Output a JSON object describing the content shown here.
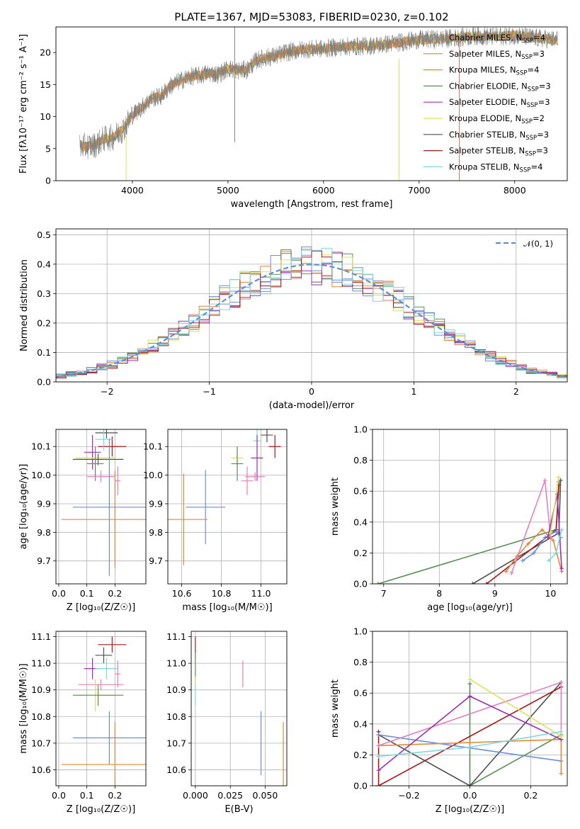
{
  "figure_title": "PLATE=1367, MJD=53083, FIBERID=0230, z=0.102",
  "colors": {
    "chab_miles": "#6a8fdc",
    "salp_miles": "#e0843e",
    "krou_miles": "#e08a35",
    "chab_elodie": "#5b8c5a",
    "salp_elodie": "#9b30b0",
    "krou_elodie": "#d9e35a",
    "chab_stelib": "#505050",
    "salp_stelib": "#a51818",
    "krou_stelib": "#7fd8dc",
    "data": "#808080",
    "pink": "#e27fbf"
  },
  "legend_entries": [
    {
      "label": "Chabrier MILES, N",
      "sub": "SSP",
      "suffix": "=4",
      "color": "#6a8fdc"
    },
    {
      "label": "Salpeter MILES, N",
      "sub": "SSP",
      "suffix": "=3",
      "color": "#e07b5a"
    },
    {
      "label": "Kroupa MILES, N",
      "sub": "SSP",
      "suffix": "=4",
      "color": "#e08a35"
    },
    {
      "label": "Chabrier ELODIE, N",
      "sub": "SSP",
      "suffix": "=3",
      "color": "#5b8c5a"
    },
    {
      "label": "Salpeter ELODIE, N",
      "sub": "SSP",
      "suffix": "=3",
      "color": "#9b30b0"
    },
    {
      "label": "Kroupa ELODIE, N",
      "sub": "SSP",
      "suffix": "=2",
      "color": "#d9e35a"
    },
    {
      "label": "Chabrier STELIB, N",
      "sub": "SSP",
      "suffix": "=3",
      "color": "#505050"
    },
    {
      "label": "Salpeter STELIB, N",
      "sub": "SSP",
      "suffix": "=3",
      "color": "#a51818"
    },
    {
      "label": "Kroupa STELIB, N",
      "sub": "SSP",
      "suffix": "=4",
      "color": "#7fd8dc"
    }
  ],
  "normal_label": "𝒩(0, 1)",
  "chart_data": [
    {
      "id": "spectrum",
      "type": "line",
      "xlabel": "wavelength [Angstrom, rest frame]",
      "ylabel": "Flux [fλ10⁻¹⁷ erg cm⁻² s⁻¹ A⁻¹]",
      "xlim": [
        3200,
        8550
      ],
      "ylim": [
        0,
        24
      ],
      "xticks": [
        4000,
        5000,
        6000,
        7000,
        8000
      ],
      "yticks": [
        0,
        5,
        10,
        15,
        20
      ],
      "continuum": {
        "x": [
          3450,
          3600,
          3700,
          3800,
          3900,
          4000,
          4100,
          4200,
          4300,
          4400,
          4500,
          4600,
          4700,
          4800,
          4900,
          5000,
          5100,
          5200,
          5300,
          5400,
          5500,
          5600,
          5800,
          6000,
          6200,
          6400,
          6600,
          6800,
          7000,
          7200,
          7400,
          7600,
          7800,
          8000,
          8200,
          8400
        ],
        "y": [
          5.3,
          5.5,
          6.5,
          6.8,
          8.0,
          10.2,
          11.5,
          12.8,
          13.2,
          14.8,
          15.6,
          16.2,
          16.4,
          16.8,
          16.6,
          17.5,
          17.2,
          17.3,
          18.8,
          19.2,
          19.5,
          20.0,
          20.5,
          20.6,
          20.9,
          21.0,
          21.2,
          21.6,
          22.0,
          22.1,
          22.3,
          22.6,
          22.5,
          22.7,
          22.3,
          22.0
        ]
      },
      "spikes": [
        {
          "x": 5070,
          "y0": 6,
          "y1": 24,
          "color": "#808080"
        },
        {
          "x": 6790,
          "y0": 0,
          "y1": 19,
          "color": "#d9e35a"
        },
        {
          "x": 7420,
          "y0": 0,
          "y1": 22,
          "color": "#e07b5a"
        },
        {
          "x": 3935,
          "y0": 0,
          "y1": 7,
          "color": "#d9e35a"
        }
      ]
    },
    {
      "id": "residuals",
      "type": "histogram",
      "xlabel": "(data-model)/error",
      "ylabel": "Normed distribution",
      "xlim": [
        -2.5,
        2.5
      ],
      "ylim": [
        0,
        0.52
      ],
      "xticks": [
        -2,
        -1,
        0,
        1,
        2
      ],
      "yticks": [
        0.0,
        0.1,
        0.2,
        0.3,
        0.4,
        0.5
      ],
      "bin_width": 0.1,
      "normal_mean": 0,
      "normal_sigma": 1
    },
    {
      "id": "age_vs_Z",
      "type": "errorbar",
      "xlabel": "Z [log₁₀(Z/Z☉)]",
      "ylabel": "age  [log₁₀(age/yr)]",
      "xlim": [
        -0.01,
        0.31
      ],
      "ylim": [
        9.62,
        10.16
      ],
      "xticks": [
        0.0,
        0.1,
        0.2
      ],
      "yticks": [
        9.7,
        9.8,
        9.9,
        10.0,
        10.1
      ],
      "points": [
        {
          "x": 0.17,
          "xerr": 0.04,
          "y": 10.148,
          "yerr": 0.02,
          "color": "#505050"
        },
        {
          "x": 0.19,
          "xerr": 0.05,
          "y": 10.1,
          "yerr": 0.035,
          "color": "#a51818"
        },
        {
          "x": 0.16,
          "xerr": 0.03,
          "y": 10.125,
          "yerr": 0.04,
          "color": "#7fd8dc"
        },
        {
          "x": 0.12,
          "xerr": 0.03,
          "y": 10.08,
          "yerr": 0.06,
          "color": "#9b30b0"
        },
        {
          "x": 0.13,
          "xerr": 0.07,
          "y": 10.06,
          "yerr": 0.03,
          "color": "#d9e35a"
        },
        {
          "x": 0.14,
          "xerr": 0.09,
          "y": 10.055,
          "yerr": 0.02,
          "color": "#505050"
        },
        {
          "x": 0.13,
          "xerr": 0.03,
          "y": 10.04,
          "yerr": 0.06,
          "color": "#5b8c5a"
        },
        {
          "x": 0.15,
          "xerr": 0.05,
          "y": 9.995,
          "yerr": 0.02,
          "color": "#e27fbf"
        },
        {
          "x": 0.21,
          "xerr": 0.01,
          "y": 9.98,
          "yerr": 0.05,
          "color": "#e27fbf"
        },
        {
          "x": 0.18,
          "xerr": 0.13,
          "y": 9.888,
          "yerr": 0.24,
          "color": "#6a8fdc"
        },
        {
          "x": 0.2,
          "xerr": 0.19,
          "y": 9.845,
          "yerr": 0.17,
          "color": "#e08a35"
        }
      ]
    },
    {
      "id": "age_vs_mass",
      "type": "errorbar",
      "xlabel": "mass [log₁₀(M/M☉)]",
      "ylabel": "",
      "xlim": [
        10.53,
        11.13
      ],
      "ylim": [
        9.62,
        10.16
      ],
      "xticks": [
        10.6,
        10.8,
        11.0
      ],
      "yticks": [
        9.7,
        9.8,
        9.9,
        10.0,
        10.1
      ],
      "points": [
        {
          "x": 11.03,
          "xerr": 0.03,
          "y": 10.14,
          "yerr": 0.025,
          "color": "#505050"
        },
        {
          "x": 11.07,
          "xerr": 0.03,
          "y": 10.1,
          "yerr": 0.04,
          "color": "#a51818"
        },
        {
          "x": 10.98,
          "xerr": 0.02,
          "y": 10.12,
          "yerr": 0.05,
          "color": "#7fd8dc"
        },
        {
          "x": 10.98,
          "xerr": 0.03,
          "y": 10.06,
          "yerr": 0.08,
          "color": "#9b30b0"
        },
        {
          "x": 10.88,
          "xerr": 0.03,
          "y": 10.06,
          "yerr": 0.04,
          "color": "#d9e35a"
        },
        {
          "x": 10.88,
          "xerr": 0.03,
          "y": 10.04,
          "yerr": 0.06,
          "color": "#5b8c5a"
        },
        {
          "x": 10.93,
          "xerr": 0.03,
          "y": 9.98,
          "yerr": 0.05,
          "color": "#e27fbf"
        },
        {
          "x": 10.97,
          "xerr": 0.05,
          "y": 9.995,
          "yerr": 0.015,
          "color": "#e27fbf"
        },
        {
          "x": 10.72,
          "xerr": 0.1,
          "y": 9.888,
          "yerr": 0.13,
          "color": "#6a8fdc"
        },
        {
          "x": 10.61,
          "xerr": 0.12,
          "y": 9.845,
          "yerr": 0.16,
          "color": "#e08a35"
        }
      ]
    },
    {
      "id": "weight_vs_age",
      "type": "line",
      "xlabel": "age  [log₁₀(age/yr)]",
      "ylabel": "mass weight",
      "xlim": [
        6.8,
        10.3
      ],
      "ylim": [
        0,
        1
      ],
      "xticks": [
        7,
        8,
        9,
        10
      ],
      "yticks": [
        0.0,
        0.2,
        0.4,
        0.6,
        0.8,
        1.0
      ],
      "series": [
        {
          "color": "#5b8c5a",
          "x": [
            6.9,
            10.1,
            10.15
          ],
          "y": [
            0.0,
            0.35,
            0.66
          ]
        },
        {
          "color": "#505050",
          "x": [
            8.6,
            10.15,
            10.18
          ],
          "y": [
            0.0,
            0.33,
            0.67
          ]
        },
        {
          "color": "#a51818",
          "x": [
            8.85,
            10.1,
            10.15
          ],
          "y": [
            0.0,
            0.35,
            0.64
          ]
        },
        {
          "color": "#6a8fdc",
          "x": [
            9.5,
            9.7,
            9.9,
            10.1,
            10.18
          ],
          "y": [
            0.15,
            0.2,
            0.3,
            0.34,
            0.3
          ]
        },
        {
          "color": "#e08a35",
          "x": [
            9.2,
            9.4,
            9.6,
            9.85,
            10.05,
            10.2
          ],
          "y": [
            0.08,
            0.18,
            0.26,
            0.35,
            0.28,
            0.08
          ]
        },
        {
          "color": "#e27fbf",
          "x": [
            9.3,
            9.9,
            10.0
          ],
          "y": [
            0.07,
            0.67,
            0.3
          ]
        },
        {
          "color": "#9b30b0",
          "x": [
            9.95,
            10.12,
            10.2
          ],
          "y": [
            0.3,
            0.58,
            0.1
          ]
        },
        {
          "color": "#d9e35a",
          "x": [
            10.0,
            10.15
          ],
          "y": [
            0.33,
            0.69
          ]
        },
        {
          "color": "#7fd8dc",
          "x": [
            9.97,
            10.1,
            10.2
          ],
          "y": [
            0.15,
            0.2,
            0.35
          ]
        }
      ]
    },
    {
      "id": "mass_vs_Z",
      "type": "errorbar",
      "xlabel": "Z [log₁₀(Z/Z☉)]",
      "ylabel": "mass [log₁₀(M/M☉)]",
      "xlim": [
        -0.01,
        0.31
      ],
      "ylim": [
        10.54,
        11.12
      ],
      "xticks": [
        0.0,
        0.1,
        0.2
      ],
      "yticks": [
        10.6,
        10.7,
        10.8,
        10.9,
        11.0,
        11.1
      ],
      "points": [
        {
          "x": 0.19,
          "xerr": 0.05,
          "y": 11.07,
          "yerr": 0.03,
          "color": "#a51818"
        },
        {
          "x": 0.16,
          "xerr": 0.03,
          "y": 11.03,
          "yerr": 0.03,
          "color": "#505050"
        },
        {
          "x": 0.12,
          "xerr": 0.03,
          "y": 10.98,
          "yerr": 0.04,
          "color": "#9b30b0"
        },
        {
          "x": 0.17,
          "xerr": 0.04,
          "y": 10.98,
          "yerr": 0.04,
          "color": "#7fd8dc"
        },
        {
          "x": 0.21,
          "xerr": 0.01,
          "y": 10.96,
          "yerr": 0.05,
          "color": "#e27fbf"
        },
        {
          "x": 0.15,
          "xerr": 0.08,
          "y": 10.92,
          "yerr": 0.02,
          "color": "#e27fbf"
        },
        {
          "x": 0.13,
          "xerr": 0.07,
          "y": 10.88,
          "yerr": 0.06,
          "color": "#d9e35a"
        },
        {
          "x": 0.14,
          "xerr": 0.09,
          "y": 10.88,
          "yerr": 0.04,
          "color": "#5b8c5a"
        },
        {
          "x": 0.18,
          "xerr": 0.13,
          "y": 10.72,
          "yerr": 0.1,
          "color": "#6a8fdc"
        },
        {
          "x": 0.2,
          "xerr": 0.19,
          "y": 10.62,
          "yerr": 0.16,
          "color": "#e08a35"
        }
      ]
    },
    {
      "id": "mass_vs_ebv",
      "type": "errorbar",
      "xlabel": "E(B-V)",
      "ylabel": "",
      "xlim": [
        -0.003,
        0.0655
      ],
      "ylim": [
        10.54,
        11.12
      ],
      "xticks": [
        0.0,
        0.025,
        0.05
      ],
      "yticks": [
        10.6,
        10.7,
        10.8,
        10.9,
        11.0,
        11.1
      ],
      "points": [
        {
          "x": 0.0,
          "xerr": 0.0,
          "y": 11.06,
          "yerr": 0.04,
          "color": "#a51818"
        },
        {
          "x": 0.0,
          "xerr": 0.0,
          "y": 10.98,
          "yerr": 0.06,
          "color": "#5b8c5a"
        },
        {
          "x": 0.0,
          "xerr": 0.0,
          "y": 10.9,
          "yerr": 0.05,
          "color": "#d9e35a"
        },
        {
          "x": 0.0,
          "xerr": 0.0,
          "y": 10.88,
          "yerr": 0.04,
          "color": "#7fd8dc"
        },
        {
          "x": 0.034,
          "xerr": 0.0,
          "y": 10.96,
          "yerr": 0.05,
          "color": "#e27fbf"
        },
        {
          "x": 0.047,
          "xerr": 0.0,
          "y": 10.7,
          "yerr": 0.12,
          "color": "#6a8fdc"
        },
        {
          "x": 0.063,
          "xerr": 0.0,
          "y": 10.66,
          "yerr": 0.12,
          "color": "#e08a35"
        }
      ]
    },
    {
      "id": "weight_vs_Z",
      "type": "line",
      "xlabel": "Z [log₁₀(Z/Z☉)]",
      "ylabel": "mass weight",
      "xlim": [
        -0.32,
        0.32
      ],
      "ylim": [
        0,
        1
      ],
      "xticks": [
        -0.2,
        0.0,
        0.2
      ],
      "yticks": [
        0.0,
        0.2,
        0.4,
        0.6,
        0.8,
        1.0
      ],
      "series": [
        {
          "color": "#5b8c5a",
          "x": [
            0.0,
            0.0,
            0.3
          ],
          "y": [
            0.66,
            0.0,
            0.33
          ]
        },
        {
          "color": "#505050",
          "x": [
            -0.3,
            0.0,
            0.3
          ],
          "y": [
            0.33,
            0.0,
            0.67
          ]
        },
        {
          "color": "#a51818",
          "x": [
            -0.3,
            -0.3,
            0.3
          ],
          "y": [
            0.35,
            0.0,
            0.64
          ]
        },
        {
          "color": "#6a8fdc",
          "x": [
            -0.3,
            0.3
          ],
          "y": [
            0.33,
            0.16
          ]
        },
        {
          "color": "#e08a35",
          "x": [
            -0.3,
            0.0,
            0.3,
            0.3
          ],
          "y": [
            0.26,
            0.28,
            0.3,
            0.08
          ]
        },
        {
          "color": "#e27fbf",
          "x": [
            -0.3,
            0.3,
            0.3
          ],
          "y": [
            0.26,
            0.67,
            0.3
          ]
        },
        {
          "color": "#9b30b0",
          "x": [
            -0.3,
            0.0,
            0.3
          ],
          "y": [
            0.1,
            0.58,
            0.3
          ]
        },
        {
          "color": "#d9e35a",
          "x": [
            0.0,
            0.3
          ],
          "y": [
            0.69,
            0.32
          ]
        },
        {
          "color": "#7fd8dc",
          "x": [
            -0.3,
            0.0,
            0.3
          ],
          "y": [
            0.19,
            0.25,
            0.35
          ]
        }
      ]
    }
  ]
}
